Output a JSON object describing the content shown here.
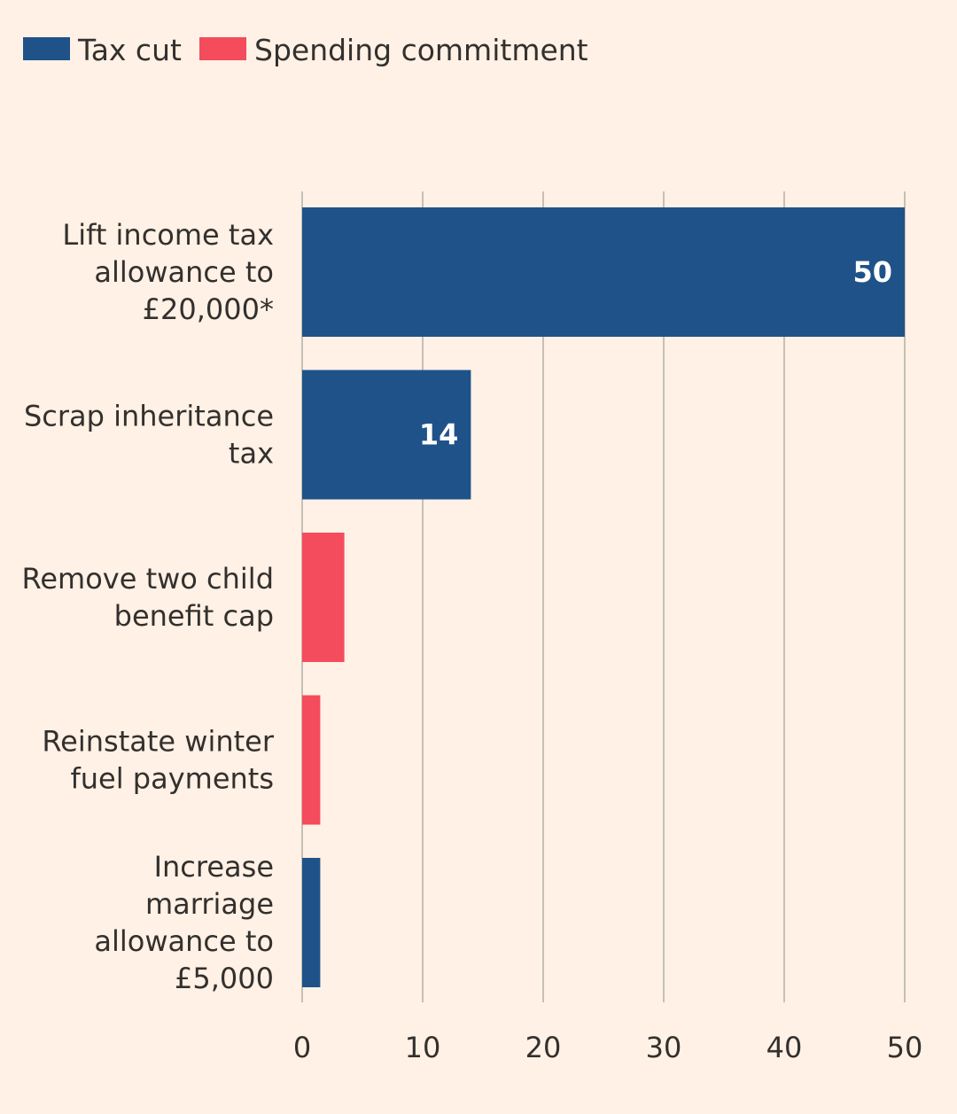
{
  "chart_data": {
    "type": "bar",
    "orientation": "horizontal",
    "legend_position": "top-left",
    "grid": true,
    "legend": [
      {
        "key": "tax_cut",
        "label": "Tax cut",
        "color": "#1f5289"
      },
      {
        "key": "spending",
        "label": "Spending commitment",
        "color": "#f44c5c"
      }
    ],
    "categories": [
      [
        "Lift income tax",
        "allowance to",
        "£20,000*"
      ],
      [
        "Scrap inheritance",
        "tax"
      ],
      [
        "Remove two child",
        "benefit cap"
      ],
      [
        "Reinstate winter",
        "fuel payments"
      ],
      [
        "Increase",
        "marriage",
        "allowance to",
        "£5,000"
      ]
    ],
    "values": [
      50,
      14,
      3.5,
      1.5,
      1.5
    ],
    "series_type": [
      "tax_cut",
      "tax_cut",
      "spending",
      "spending",
      "tax_cut"
    ],
    "data_labels": [
      "50",
      "14",
      "",
      "",
      ""
    ],
    "xlim": [
      0,
      50
    ],
    "xticks": [
      0,
      10,
      20,
      30,
      40,
      50
    ],
    "title": "",
    "xlabel": "",
    "ylabel": ""
  }
}
